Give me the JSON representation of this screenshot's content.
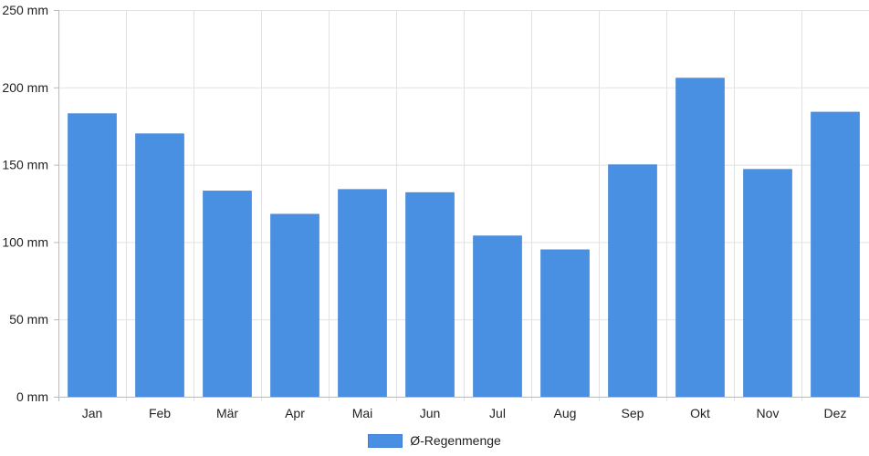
{
  "chart_data": {
    "type": "bar",
    "categories": [
      "Jan",
      "Feb",
      "Mär",
      "Apr",
      "Mai",
      "Jun",
      "Jul",
      "Aug",
      "Sep",
      "Okt",
      "Nov",
      "Dez"
    ],
    "series": [
      {
        "name": "Ø-Regenmenge",
        "values": [
          183,
          170,
          133,
          118,
          134,
          132,
          104,
          95,
          150,
          206,
          147,
          184
        ],
        "color": "#4a90e2"
      }
    ],
    "y_ticks": [
      "0 mm",
      "50 mm",
      "100 mm",
      "150 mm",
      "200 mm",
      "250 mm"
    ],
    "ylim": [
      0,
      250
    ],
    "y_step": 50,
    "grid": true,
    "legend_position": "bottom-center"
  }
}
